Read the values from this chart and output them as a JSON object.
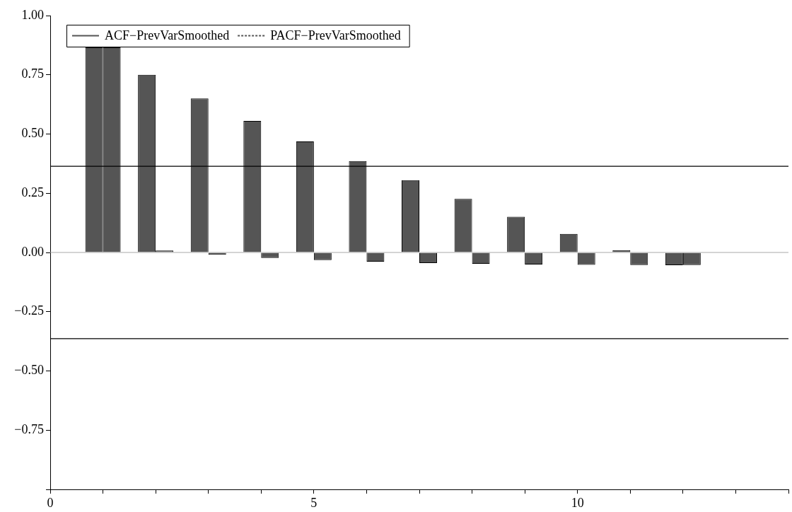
{
  "chart_data": {
    "type": "bar",
    "x": [
      1,
      2,
      3,
      4,
      5,
      6,
      7,
      8,
      9,
      10,
      11,
      12
    ],
    "series": [
      {
        "name": "ACF−PrevVarSmoothed",
        "color": "#555555",
        "line_style": "solid",
        "values": [
          0.866,
          0.75,
          0.65,
          0.555,
          0.469,
          0.386,
          0.305,
          0.226,
          0.151,
          0.078,
          0.01,
          -0.054
        ]
      },
      {
        "name": "PACF−PrevVarSmoothed",
        "color": "#555555",
        "line_style": "dashed",
        "values": [
          0.866,
          0.008,
          -0.01,
          -0.023,
          -0.032,
          -0.039,
          -0.045,
          -0.048,
          -0.051,
          -0.052,
          -0.053,
          -0.053
        ]
      }
    ],
    "xlim": [
      0,
      14
    ],
    "xticks": [
      0,
      {
        "value": 1,
        "label": null
      },
      {
        "value": 2,
        "label": null
      },
      {
        "value": 3,
        "label": null
      },
      {
        "value": 4,
        "label": null
      },
      5,
      {
        "value": 6,
        "label": null
      },
      {
        "value": 7,
        "label": null
      },
      {
        "value": 8,
        "label": null
      },
      {
        "value": 9,
        "label": null
      },
      10,
      {
        "value": 11,
        "label": null
      },
      {
        "value": 12,
        "label": null
      },
      {
        "value": 13,
        "label": null
      },
      {
        "value": 14,
        "label": null
      }
    ],
    "ylim": [
      -1,
      1
    ],
    "yticks": [
      {
        "value": -1,
        "label": null
      },
      {
        "value": -0.75,
        "label": "−0.75"
      },
      {
        "value": -0.5,
        "label": "−0.50"
      },
      {
        "value": -0.25,
        "label": "−0.25"
      },
      {
        "value": 0,
        "label": "0.00"
      },
      {
        "value": 0.25,
        "label": "0.25"
      },
      {
        "value": 0.5,
        "label": "0.50"
      },
      {
        "value": 0.75,
        "label": "0.75"
      },
      {
        "value": 1,
        "label": "1.00"
      }
    ],
    "ref_lines": [
      {
        "axis": "y",
        "value": 0,
        "color": "#aaaaaa"
      },
      {
        "axis": "y",
        "value": 0.364,
        "color": "#000000"
      },
      {
        "axis": "y",
        "value": -0.364,
        "color": "#000000"
      }
    ],
    "grid": false,
    "legend": "top left"
  }
}
